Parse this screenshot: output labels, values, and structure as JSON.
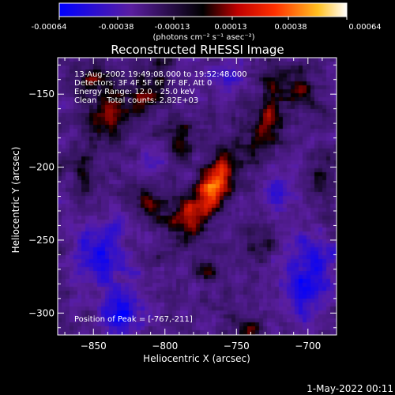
{
  "colorbar": {
    "ticks": [
      "-0.00064",
      "-0.00038",
      "-0.00013",
      "0.00013",
      "0.00038",
      "0.00064"
    ],
    "unit_label": "(photons cm⁻² s⁻¹ asec⁻²)"
  },
  "annotations": {
    "time_range": "13-Aug-2002 19:49:08.000 to 19:52:48.000",
    "detectors": "Detectors: 3F 4F 5F 6F 7F 8F, Att 0",
    "energy_range": "Energy Range: 12.0 - 25.0 keV",
    "clean_counts": "Clean    Total counts: 2.82E+03",
    "peak": "Position of Peak = [-767,-211]"
  },
  "footer_date": "1-May-2022 00:11",
  "colors": {
    "background": "#000000",
    "negative_low": "#0000ff",
    "negative_mid": "#5a1ea0",
    "zero": "#000000",
    "positive_mid": "#ff2000",
    "positive_high": "#ffff40",
    "positive_max": "#ffffff"
  },
  "chart_data": {
    "type": "heatmap",
    "title": "Reconstructed RHESSI Image",
    "xlabel": "Heliocentric X (arcsec)",
    "ylabel": "Heliocentric Y (arcsec)",
    "xlim": [
      -875,
      -680
    ],
    "ylim": [
      -315,
      -125
    ],
    "xticks": [
      -850,
      -800,
      -750,
      -700
    ],
    "yticks": [
      -150,
      -200,
      -250,
      -300
    ],
    "colorbar_range": [
      -0.00064,
      0.00064
    ],
    "peak": {
      "x": -767,
      "y": -211
    },
    "sources": [
      {
        "x": -765,
        "y": -212,
        "sx": 7,
        "sy": 16,
        "amp": 0.00064,
        "tilt": 0.5
      },
      {
        "x": -785,
        "y": -235,
        "sx": 10,
        "sy": 10,
        "amp": 0.00034,
        "tilt": 0
      },
      {
        "x": -810,
        "y": -222,
        "sx": 7,
        "sy": 7,
        "amp": 0.00026,
        "tilt": 0
      },
      {
        "x": -840,
        "y": -165,
        "sx": 9,
        "sy": 15,
        "amp": 0.00036,
        "tilt": 0
      },
      {
        "x": -812,
        "y": -150,
        "sx": 8,
        "sy": 12,
        "amp": 0.0003,
        "tilt": 0
      },
      {
        "x": -790,
        "y": -180,
        "sx": 6,
        "sy": 10,
        "amp": 0.00026,
        "tilt": 0
      },
      {
        "x": -728,
        "y": -165,
        "sx": 7,
        "sy": 22,
        "amp": 0.0003,
        "tilt": 0.2
      },
      {
        "x": -705,
        "y": -148,
        "sx": 7,
        "sy": 9,
        "amp": 0.00028,
        "tilt": 0
      },
      {
        "x": -735,
        "y": -255,
        "sx": 7,
        "sy": 9,
        "amp": 0.00024,
        "tilt": 0
      },
      {
        "x": -770,
        "y": -272,
        "sx": 6,
        "sy": 6,
        "amp": 0.00022,
        "tilt": 0
      },
      {
        "x": -858,
        "y": -205,
        "sx": 6,
        "sy": 8,
        "amp": 0.00026,
        "tilt": 0
      },
      {
        "x": -852,
        "y": -140,
        "sx": 6,
        "sy": 6,
        "amp": 0.00024,
        "tilt": 0
      },
      {
        "x": -690,
        "y": -205,
        "sx": 6,
        "sy": 9,
        "amp": 0.00022,
        "tilt": 0
      },
      {
        "x": -740,
        "y": -310,
        "sx": 8,
        "sy": 6,
        "amp": 0.00022,
        "tilt": 0
      },
      {
        "x": -845,
        "y": -260,
        "sx": 14,
        "sy": 14,
        "amp": -0.00034,
        "tilt": 0
      },
      {
        "x": -830,
        "y": -298,
        "sx": 10,
        "sy": 10,
        "amp": -0.00042,
        "tilt": 0
      },
      {
        "x": -700,
        "y": -275,
        "sx": 14,
        "sy": 20,
        "amp": -0.00036,
        "tilt": 0
      },
      {
        "x": -810,
        "y": -195,
        "sx": 8,
        "sy": 8,
        "amp": -0.00024,
        "tilt": 0
      },
      {
        "x": -755,
        "y": -140,
        "sx": 8,
        "sy": 8,
        "amp": -0.00028,
        "tilt": 0
      },
      {
        "x": -720,
        "y": -215,
        "sx": 8,
        "sy": 10,
        "amp": -0.00024,
        "tilt": 0
      }
    ]
  }
}
